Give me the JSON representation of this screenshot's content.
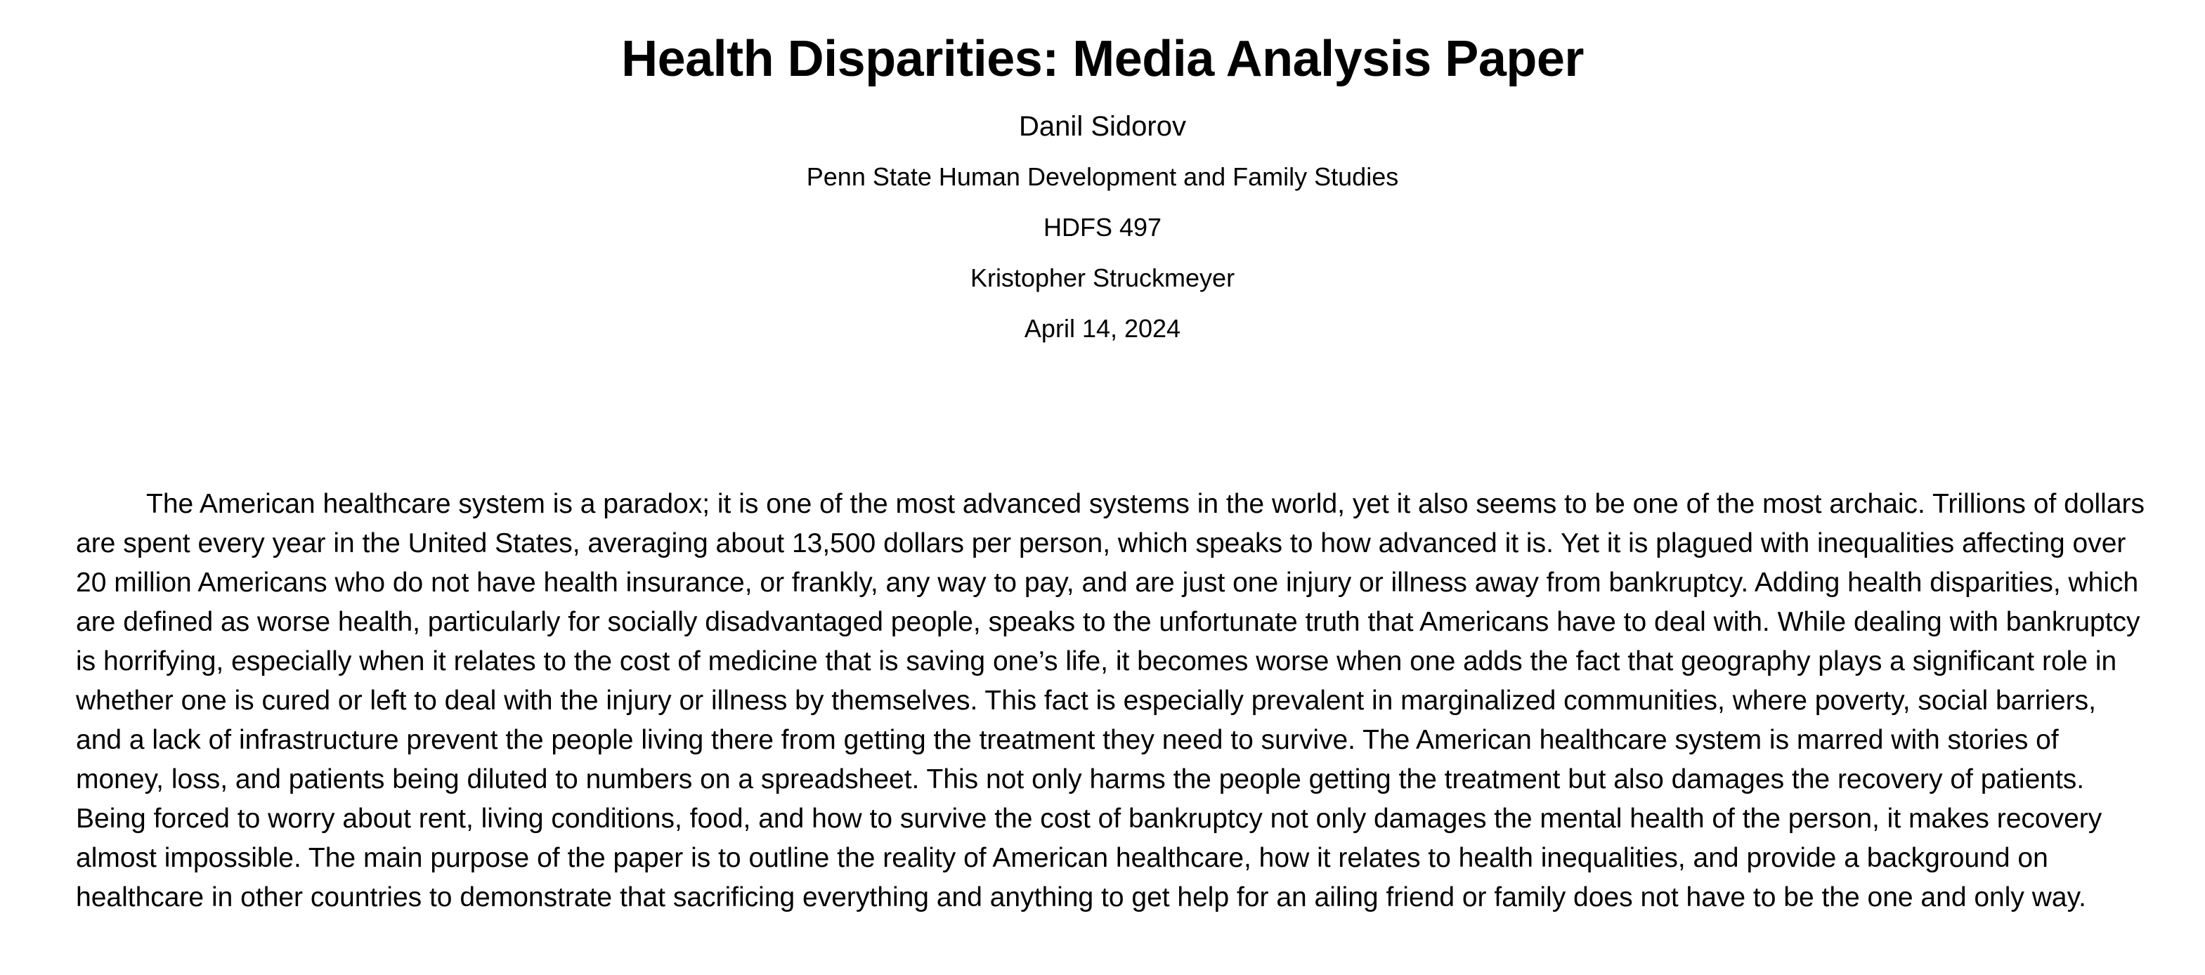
{
  "document": {
    "title": "Health Disparities: Media Analysis Paper",
    "author": "Danil Sidorov",
    "institution": "Penn State Human Development and Family Studies",
    "course": "HDFS 497",
    "instructor": "Kristopher Struckmeyer",
    "date": "April 14, 2024",
    "paragraphs": [
      "The American healthcare system is a paradox; it is one of the most advanced systems in the world, yet it also seems to be one of the most archaic. Trillions of dollars are spent every year in the United States, averaging about 13,500 dollars per person, which speaks to how advanced it is. Yet it is plagued with inequalities affecting over 20 million Americans who do not have health insurance, or frankly, any way to pay, and are just one injury or illness away from bankruptcy. Adding health disparities, which are defined as worse health, particularly for socially disadvantaged people, speaks to the unfortunate truth that Americans have to deal with. While dealing with bankruptcy is horrifying, especially when it relates to the cost of medicine that is saving one’s life, it becomes worse when one adds the fact that geography plays a significant role in whether one is cured or left to deal with the injury or illness by themselves. This fact is especially prevalent in marginalized communities, where poverty, social barriers, and a lack of infrastructure prevent the people living there from getting the treatment they need to survive. The American healthcare system is marred with stories of money, loss, and patients being diluted to numbers on a spreadsheet. This not only harms the people getting the treatment but also damages the recovery of patients. Being forced to worry about rent, living conditions, food, and how to survive the cost of bankruptcy not only damages the mental health of the person, it makes recovery almost impossible. The main purpose of the paper is to outline the reality of American healthcare, how it relates to health inequalities, and provide a background on healthcare in other countries to demonstrate that sacrificing everything and anything to get help for an ailing friend or family does not have to be the one and only way."
    ]
  }
}
